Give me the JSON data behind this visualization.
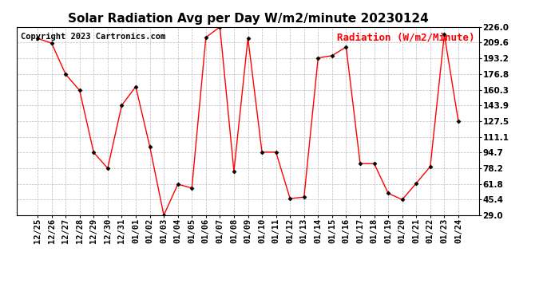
{
  "title": "Solar Radiation Avg per Day W/m2/minute 20230124",
  "copyright": "Copyright 2023 Cartronics.com",
  "legend_label": "Radiation (W/m2/Minute)",
  "dates": [
    "12/25",
    "12/26",
    "12/27",
    "12/28",
    "12/29",
    "12/30",
    "12/31",
    "01/01",
    "01/02",
    "01/03",
    "01/04",
    "01/05",
    "01/06",
    "01/07",
    "01/08",
    "01/09",
    "01/10",
    "01/11",
    "01/12",
    "01/13",
    "01/14",
    "01/15",
    "01/16",
    "01/17",
    "01/18",
    "01/19",
    "01/20",
    "01/21",
    "01/22",
    "01/23",
    "01/24"
  ],
  "values": [
    214.0,
    209.0,
    176.5,
    159.5,
    94.7,
    78.2,
    144.0,
    163.5,
    101.0,
    29.0,
    61.5,
    57.5,
    215.0,
    226.0,
    75.0,
    214.5,
    95.0,
    95.0,
    46.5,
    48.0,
    193.5,
    196.0,
    205.0,
    83.0,
    83.0,
    52.0,
    45.4,
    62.5,
    80.0,
    218.0,
    127.5
  ],
  "line_color": "red",
  "marker_color": "black",
  "bg_color": "white",
  "grid_color": "#bbbbbb",
  "title_fontsize": 11,
  "copyright_fontsize": 7.5,
  "legend_fontsize": 9,
  "tick_fontsize": 7.5,
  "ymin": 29.0,
  "ymax": 226.0,
  "yticks": [
    29.0,
    45.4,
    61.8,
    78.2,
    94.7,
    111.1,
    127.5,
    143.9,
    160.3,
    176.8,
    193.2,
    209.6,
    226.0
  ]
}
